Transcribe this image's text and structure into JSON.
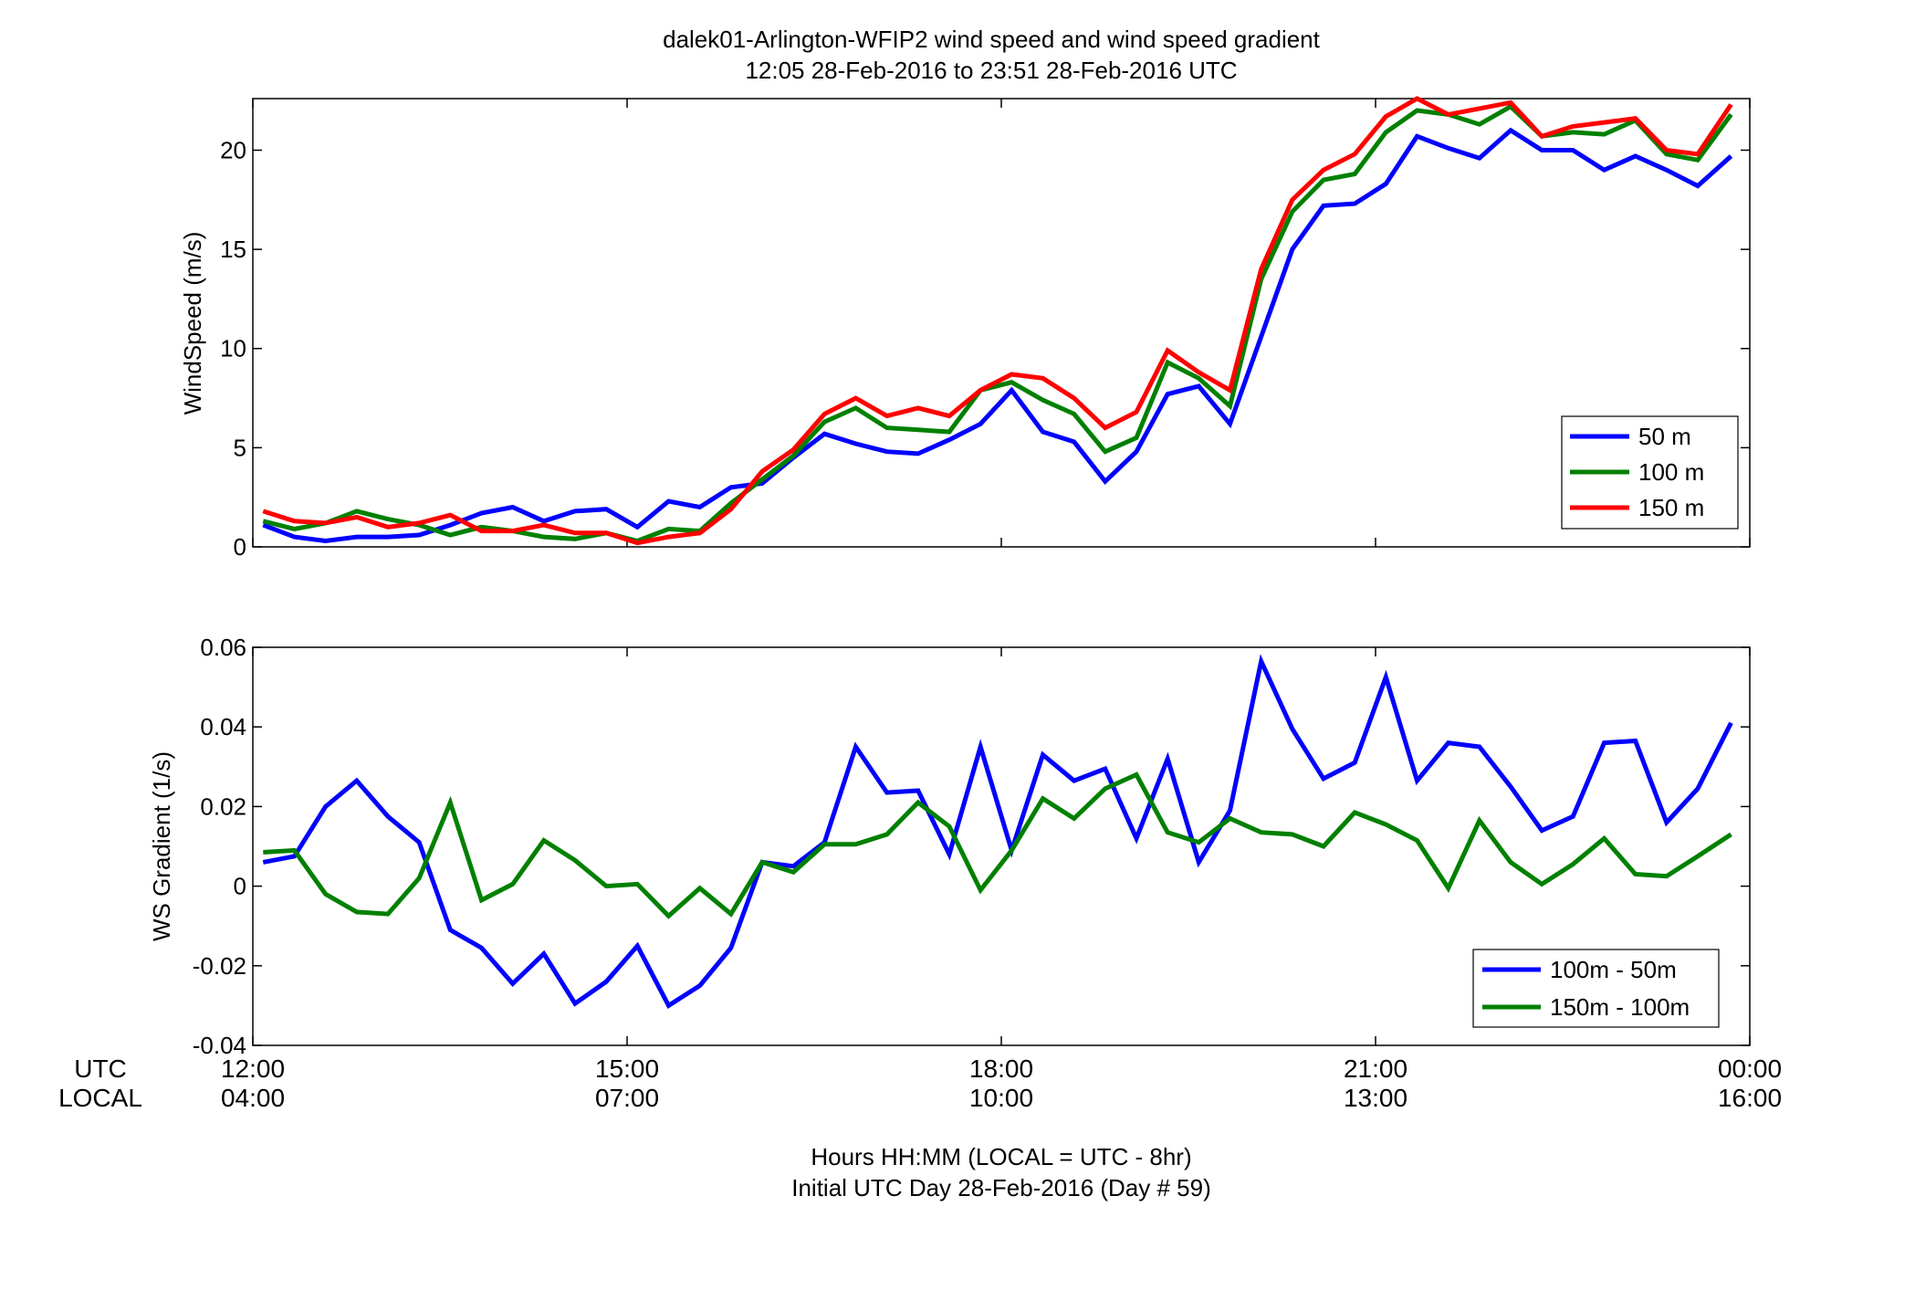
{
  "figure": {
    "title_line1": "dalek01-Arlington-WFIP2  wind speed and wind speed gradient",
    "title_line2": "12:05 28-Feb-2016 to 23:51 28-Feb-2016  UTC",
    "xlabel_line1": "Hours HH:MM  (LOCAL = UTC - 8hr)",
    "xlabel_line2": "Initial UTC Day 28-Feb-2016 (Day # 59)",
    "row_label_utc": "UTC",
    "row_label_local": "LOCAL",
    "x_ticks_utc": [
      "12:00",
      "15:00",
      "18:00",
      "21:00",
      "00:00"
    ],
    "x_ticks_local": [
      "04:00",
      "07:00",
      "10:00",
      "13:00",
      "16:00"
    ]
  },
  "chart_data": [
    {
      "type": "line",
      "ylabel": "WindSpeed (m/s)",
      "xlim": [
        12,
        24
      ],
      "ylim": [
        0,
        22.6
      ],
      "yticks": [
        0,
        5,
        10,
        15,
        20
      ],
      "ytick_labels": [
        "0",
        "5",
        "10",
        "15",
        "20"
      ],
      "grid": false,
      "legend_position": "bottom-right",
      "x": [
        12.083,
        12.333,
        12.583,
        12.833,
        13.083,
        13.333,
        13.583,
        13.833,
        14.083,
        14.333,
        14.583,
        14.833,
        15.083,
        15.333,
        15.583,
        15.833,
        16.083,
        16.333,
        16.583,
        16.833,
        17.083,
        17.333,
        17.583,
        17.833,
        18.083,
        18.333,
        18.583,
        18.833,
        19.083,
        19.333,
        19.583,
        19.833,
        20.083,
        20.333,
        20.583,
        20.833,
        21.083,
        21.333,
        21.583,
        21.833,
        22.083,
        22.333,
        22.583,
        22.833,
        23.083,
        23.333,
        23.583,
        23.85
      ],
      "series": [
        {
          "name": "50 m",
          "color": "#0000ff",
          "values": [
            1.1,
            0.5,
            0.3,
            0.5,
            0.5,
            0.6,
            1.1,
            1.7,
            2.0,
            1.3,
            1.8,
            1.9,
            1.0,
            2.3,
            2.0,
            3.0,
            3.2,
            4.5,
            5.7,
            5.2,
            4.8,
            4.7,
            5.4,
            6.2,
            7.9,
            5.8,
            5.3,
            3.3,
            4.8,
            7.7,
            8.1,
            6.2,
            10.6,
            15.0,
            17.2,
            17.3,
            18.3,
            20.7,
            20.1,
            19.6,
            21.0,
            20.0,
            20.0,
            19.0,
            19.7,
            19.0,
            18.2,
            19.7
          ]
        },
        {
          "name": "100 m",
          "color": "#008000",
          "values": [
            1.3,
            0.9,
            1.2,
            1.8,
            1.4,
            1.1,
            0.6,
            1.0,
            0.8,
            0.5,
            0.4,
            0.7,
            0.3,
            0.9,
            0.8,
            2.2,
            3.4,
            4.6,
            6.3,
            7.0,
            6.0,
            5.9,
            5.8,
            7.9,
            8.3,
            7.4,
            6.7,
            4.8,
            5.5,
            9.3,
            8.5,
            7.1,
            13.5,
            16.9,
            18.5,
            18.8,
            20.9,
            22.0,
            21.8,
            21.3,
            22.2,
            20.7,
            20.9,
            20.8,
            21.5,
            19.8,
            19.5,
            21.8
          ]
        },
        {
          "name": "150 m",
          "color": "#ff0000",
          "values": [
            1.8,
            1.3,
            1.2,
            1.5,
            1.0,
            1.2,
            1.6,
            0.8,
            0.8,
            1.1,
            0.7,
            0.7,
            0.2,
            0.5,
            0.7,
            1.9,
            3.8,
            4.9,
            6.7,
            7.5,
            6.6,
            7.0,
            6.6,
            7.9,
            8.7,
            8.5,
            7.5,
            6.0,
            6.8,
            9.9,
            8.8,
            7.9,
            14.0,
            17.5,
            19.0,
            19.8,
            21.7,
            22.6,
            21.8,
            22.1,
            22.4,
            20.7,
            21.2,
            21.4,
            21.6,
            20.0,
            19.8,
            22.3
          ]
        }
      ]
    },
    {
      "type": "line",
      "ylabel": "WS Gradient (1/s)",
      "xlim": [
        12,
        24
      ],
      "ylim": [
        -0.04,
        0.06
      ],
      "yticks": [
        -0.04,
        -0.02,
        0,
        0.02,
        0.04,
        0.06
      ],
      "ytick_labels": [
        "-0.04",
        "-0.02",
        "0",
        "0.02",
        "0.04",
        "0.06"
      ],
      "grid": false,
      "legend_position": "bottom-right",
      "x": [
        12.083,
        12.333,
        12.583,
        12.833,
        13.083,
        13.333,
        13.583,
        13.833,
        14.083,
        14.333,
        14.583,
        14.833,
        15.083,
        15.333,
        15.583,
        15.833,
        16.083,
        16.333,
        16.583,
        16.833,
        17.083,
        17.333,
        17.583,
        17.833,
        18.083,
        18.333,
        18.583,
        18.833,
        19.083,
        19.333,
        19.583,
        19.833,
        20.083,
        20.333,
        20.583,
        20.833,
        21.083,
        21.333,
        21.583,
        21.833,
        22.083,
        22.333,
        22.583,
        22.833,
        23.083,
        23.333,
        23.583,
        23.85
      ],
      "series": [
        {
          "name": "100m - 50m",
          "color": "#0000ff",
          "values": [
            0.006,
            0.0075,
            0.02,
            0.0265,
            0.0175,
            0.011,
            -0.011,
            -0.0155,
            -0.0245,
            -0.017,
            -0.0295,
            -0.024,
            -0.015,
            -0.03,
            -0.025,
            -0.0155,
            0.006,
            0.005,
            0.011,
            0.035,
            0.0235,
            0.024,
            0.008,
            0.035,
            0.009,
            0.033,
            0.0265,
            0.0295,
            0.012,
            0.032,
            0.006,
            0.019,
            0.0565,
            0.0395,
            0.027,
            0.031,
            0.0525,
            0.0265,
            0.036,
            0.035,
            0.025,
            0.014,
            0.0175,
            0.036,
            0.0365,
            0.016,
            0.0245,
            0.041
          ]
        },
        {
          "name": "150m - 100m",
          "color": "#008000",
          "values": [
            0.0085,
            0.009,
            -0.002,
            -0.0065,
            -0.007,
            0.002,
            0.021,
            -0.0035,
            0.0005,
            0.0115,
            0.0065,
            0.0,
            0.0005,
            -0.0075,
            -0.0005,
            -0.007,
            0.006,
            0.0035,
            0.0105,
            0.0105,
            0.013,
            0.021,
            0.015,
            -0.001,
            0.009,
            0.022,
            0.017,
            0.0245,
            0.028,
            0.0135,
            0.011,
            0.017,
            0.0135,
            0.013,
            0.01,
            0.0185,
            0.0155,
            0.0115,
            -0.0005,
            0.0165,
            0.006,
            0.0005,
            0.0055,
            0.012,
            0.003,
            0.0025,
            0.0075,
            0.013
          ]
        }
      ]
    }
  ]
}
